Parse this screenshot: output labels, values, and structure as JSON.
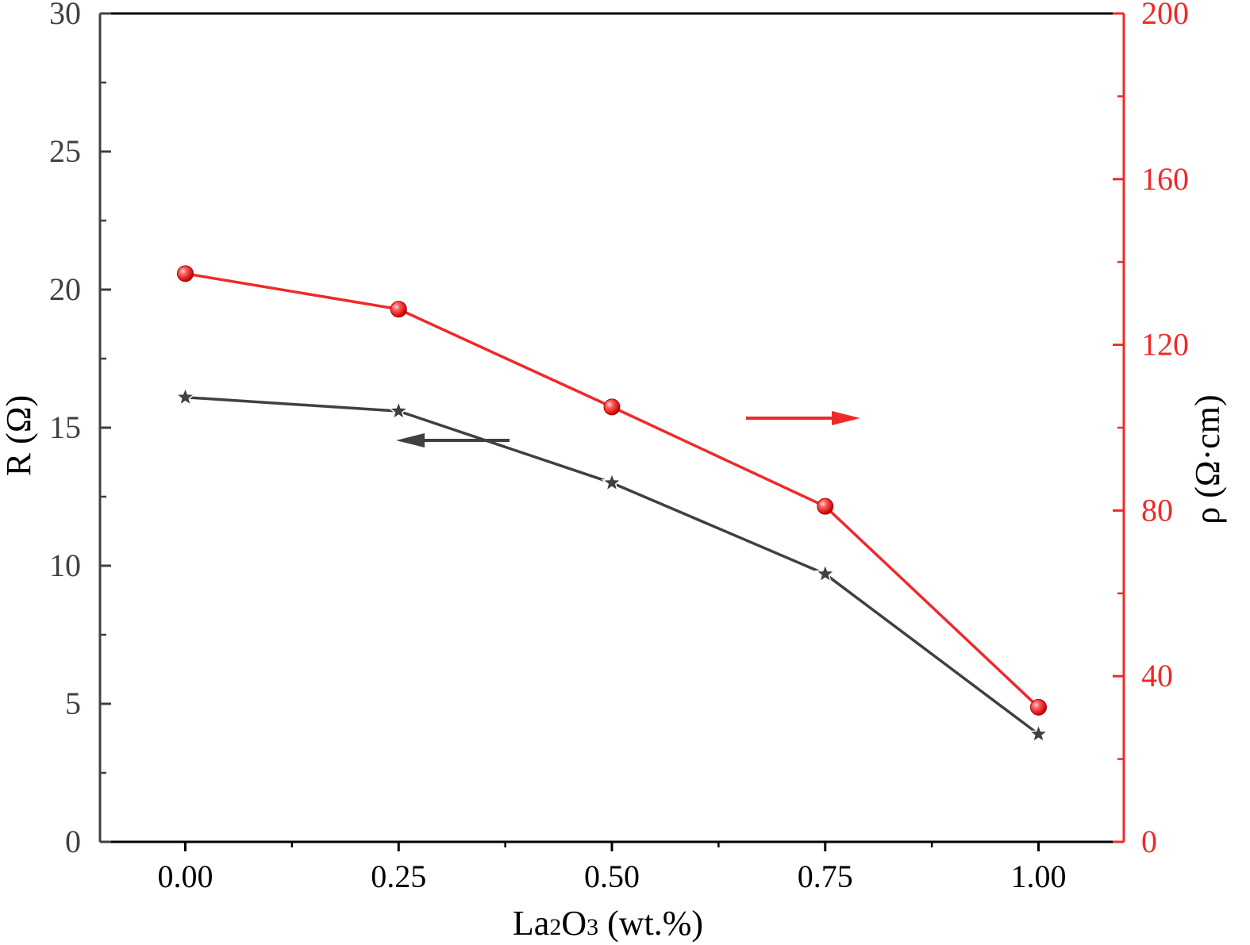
{
  "chart_data": {
    "type": "line",
    "xlabel_parts": [
      "La",
      "2",
      "O",
      "3",
      " (wt.%)"
    ],
    "ylabel_left": "R (Ω)",
    "ylabel_right": "ρ (Ω·cm)",
    "x": [
      0.0,
      0.25,
      0.5,
      0.75,
      1.0
    ],
    "x_tick_labels": [
      "0.00",
      "0.25",
      "0.50",
      "0.75",
      "1.00"
    ],
    "xlim": [
      -0.1,
      1.1
    ],
    "ylim_left": [
      0,
      30
    ],
    "ylim_right": [
      0,
      200
    ],
    "y_left_ticks": [
      0,
      5,
      10,
      15,
      20,
      25,
      30
    ],
    "y_right_ticks": [
      0,
      40,
      80,
      120,
      160,
      200
    ],
    "grid": false,
    "series": [
      {
        "axis": "left",
        "marker": "star",
        "color": "#404040",
        "values": [
          16.1,
          15.6,
          13.0,
          9.7,
          3.9
        ],
        "arrow_direction": "left"
      },
      {
        "axis": "right",
        "marker": "circle",
        "color": "#ee2a2a",
        "values": [
          137.2,
          128.6,
          105.0,
          81.0,
          32.5
        ],
        "arrow_direction": "right"
      }
    ],
    "colors": {
      "left_axis": "#404040",
      "right_axis": "#ee2a2a",
      "frame": "#000000"
    }
  }
}
